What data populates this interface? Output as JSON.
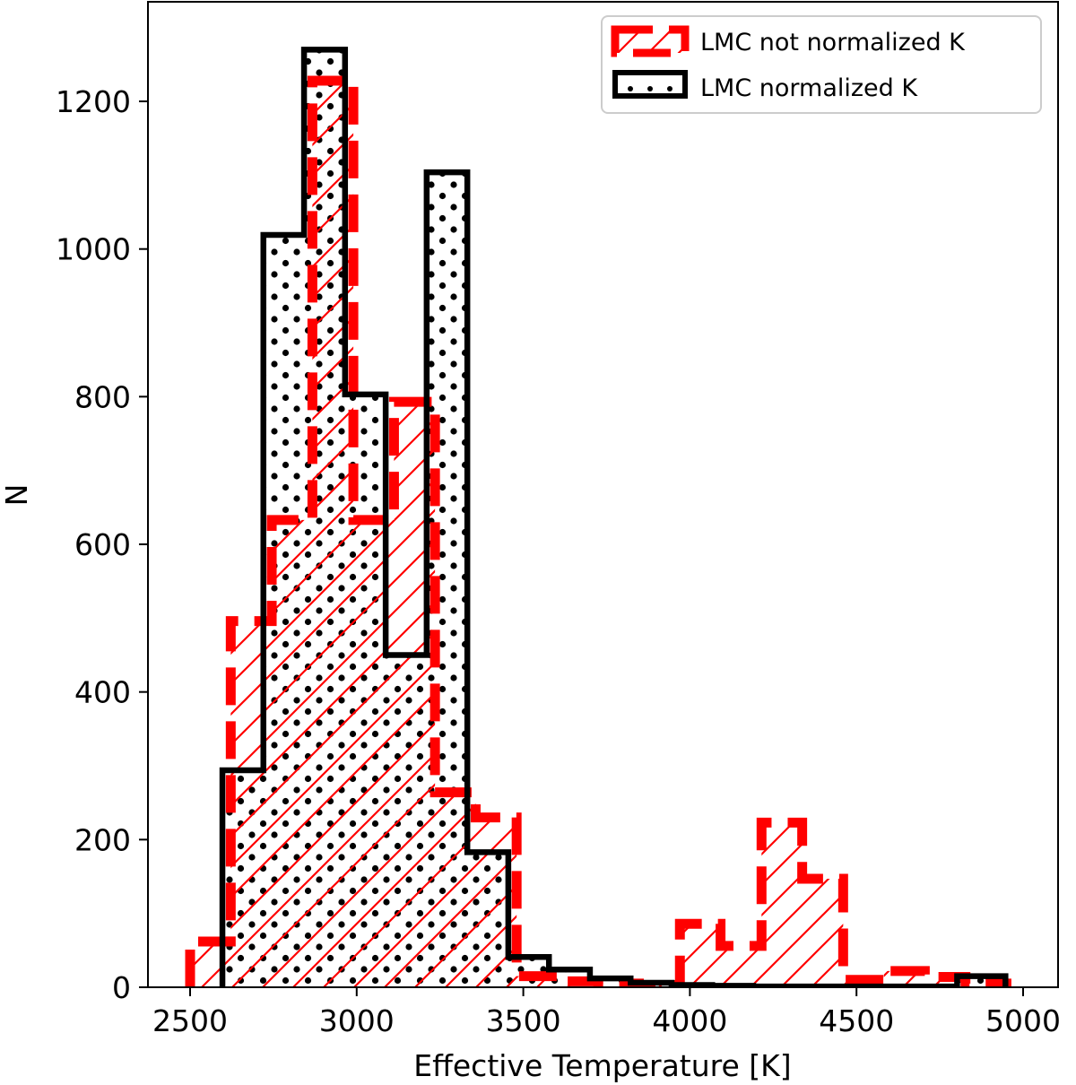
{
  "chart_data": {
    "type": "histogram",
    "title": "",
    "xlabel": "Effective Temperature [K]",
    "ylabel": "N",
    "xlim": [
      2375,
      5100
    ],
    "ylim": [
      0,
      1335
    ],
    "xticks": [
      2500,
      3000,
      3500,
      4000,
      4500,
      5000
    ],
    "xtick_labels": [
      "2500",
      "3000",
      "3500",
      "4000",
      "4500",
      "5000"
    ],
    "yticks": [
      0,
      200,
      400,
      600,
      800,
      1000,
      1200
    ],
    "ytick_labels": [
      "0",
      "200",
      "400",
      "600",
      "800",
      "1000",
      "1200"
    ],
    "grid": false,
    "legend_position": "upper right",
    "series": [
      {
        "name": "LMC not normalized K",
        "color": "#ff0000",
        "linestyle": "dashed",
        "hatch": "diagonal",
        "bin_edges": [
          2500,
          2622,
          2745,
          2867,
          2990,
          3112,
          3235,
          3357,
          3480,
          3602,
          3725,
          3847,
          3970,
          4092,
          4215,
          4337,
          4460,
          4582,
          4705,
          4827,
          4950
        ],
        "values": [
          62,
          496,
          633,
          1228,
          633,
          793,
          264,
          230,
          15,
          8,
          5,
          3,
          86,
          56,
          223,
          147,
          10,
          22,
          14,
          5
        ]
      },
      {
        "name": "LMC normalized K",
        "color": "#000000",
        "linestyle": "solid",
        "hatch": "dots",
        "bin_edges": [
          2597,
          2720,
          2842,
          2965,
          3087,
          3210,
          3332,
          3455,
          3577,
          3700,
          3822,
          3945,
          4067,
          4190,
          4312,
          4435,
          4557,
          4680,
          4802,
          4925,
          4947
        ],
        "values": [
          294,
          1019,
          1270,
          803,
          450,
          1104,
          183,
          41,
          24,
          12,
          6,
          3,
          2,
          1,
          1,
          1,
          1,
          1,
          15,
          15
        ]
      }
    ]
  },
  "legend": {
    "items": [
      {
        "label": "LMC not normalized K"
      },
      {
        "label": "LMC normalized K"
      }
    ]
  },
  "axes": {
    "xlabel": "Effective Temperature [K]",
    "ylabel": "N"
  }
}
